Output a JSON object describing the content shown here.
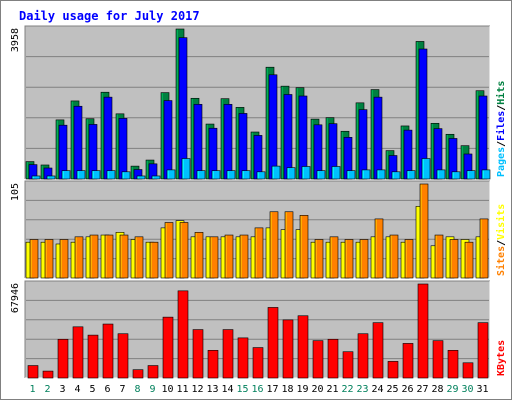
{
  "chart_data": {
    "type": "bar",
    "title": "Daily usage for July 2017",
    "categories": [
      "1",
      "2",
      "3",
      "4",
      "5",
      "6",
      "7",
      "8",
      "9",
      "10",
      "11",
      "12",
      "13",
      "14",
      "15",
      "16",
      "17",
      "18",
      "19",
      "20",
      "21",
      "22",
      "23",
      "24",
      "25",
      "26",
      "27",
      "28",
      "29",
      "30",
      "31"
    ],
    "weekend_days": [
      "1",
      "2",
      "8",
      "9",
      "15",
      "16",
      "22",
      "23",
      "29",
      "30"
    ],
    "colors": {
      "title": "#0000ff",
      "background": "#c0c0c0",
      "hits": "#008040",
      "files": "#0000ff",
      "pages": "#00c0ff",
      "visits": "#ffff00",
      "sites": "#ff8000",
      "kbytes": "#ff0000",
      "weekday_label": "#000000",
      "weekend_label": "#00805c"
    },
    "panels": [
      {
        "id": "top",
        "ymax": 3958,
        "ymax_label": "3958",
        "legend": [
          {
            "label": "Pages",
            "color": "#00c0ff"
          },
          {
            "label": "/",
            "color": "#000000"
          },
          {
            "label": "Files",
            "color": "#0000ff"
          },
          {
            "label": "/",
            "color": "#000000"
          },
          {
            "label": "Hits",
            "color": "#008040"
          }
        ],
        "series": [
          {
            "name": "Hits",
            "values": [
              460,
              370,
              1560,
              2060,
              1590,
              2290,
              1720,
              340,
              500,
              2280,
              3958,
              2130,
              1450,
              2120,
              1890,
              1240,
              2950,
              2450,
              2410,
              1580,
              1620,
              1260,
              2010,
              2360,
              750,
              1400,
              3630,
              1470,
              1180,
              880,
              2330
            ]
          },
          {
            "name": "Files",
            "values": [
              380,
              290,
              1420,
              1920,
              1440,
              2160,
              1600,
              250,
              400,
              2070,
              3730,
              1970,
              1340,
              1970,
              1730,
              1150,
              2750,
              2230,
              2190,
              1430,
              1460,
              1100,
              1830,
              2160,
              620,
              1290,
              3430,
              1330,
              1070,
              660,
              2190
            ]
          },
          {
            "name": "Pages",
            "values": [
              80,
              80,
              220,
              220,
              220,
              220,
              190,
              80,
              80,
              240,
              540,
              220,
              220,
              220,
              220,
              190,
              340,
              300,
              330,
              220,
              330,
              220,
              240,
              240,
              190,
              220,
              540,
              240,
              190,
              220,
              240
            ]
          }
        ]
      },
      {
        "id": "middle",
        "ymax": 105,
        "ymax_label": "105",
        "legend": [
          {
            "label": "Sites",
            "color": "#ff8000"
          },
          {
            "label": "/",
            "color": "#000000"
          },
          {
            "label": "Visits",
            "color": "#ffff00"
          }
        ],
        "series": [
          {
            "name": "Visits",
            "values": [
              40,
              40,
              38,
              40,
              46,
              48,
              51,
              43,
              40,
              56,
              64,
              46,
              46,
              46,
              46,
              46,
              56,
              54,
              54,
              40,
              40,
              40,
              40,
              46,
              46,
              40,
              80,
              36,
              46,
              43,
              46
            ]
          },
          {
            "name": "Sites",
            "values": [
              43,
              43,
              43,
              46,
              48,
              48,
              48,
              46,
              40,
              62,
              62,
              51,
              46,
              48,
              48,
              56,
              74,
              74,
              70,
              43,
              46,
              43,
              43,
              66,
              48,
              43,
              105,
              48,
              43,
              40,
              66
            ]
          }
        ]
      },
      {
        "id": "bottom",
        "ymax": 67946,
        "ymax_label": "67946",
        "legend": [
          {
            "label": "KBytes",
            "color": "#ff0000"
          }
        ],
        "series": [
          {
            "name": "KBytes",
            "values": [
              9000,
              5000,
              28000,
              37000,
              31000,
              39000,
              32000,
              6000,
              9000,
              44000,
              63000,
              35000,
              20000,
              35000,
              29000,
              22000,
              51000,
              42000,
              45000,
              27000,
              28000,
              19000,
              32000,
              40000,
              12000,
              25000,
              67946,
              27000,
              20000,
              11000,
              40000
            ]
          }
        ]
      }
    ]
  }
}
